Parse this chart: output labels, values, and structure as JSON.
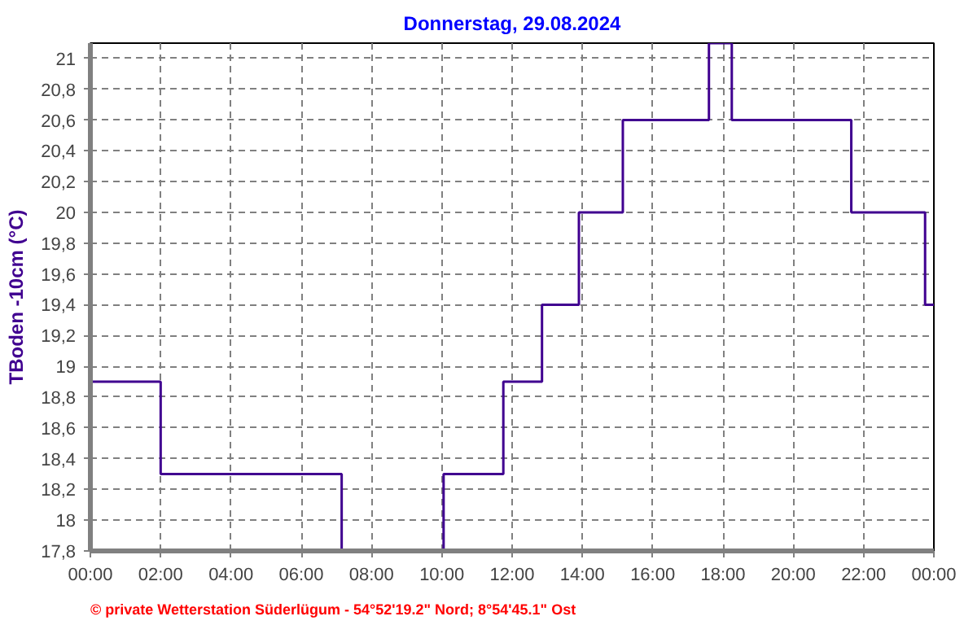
{
  "chart_data": {
    "type": "step",
    "title": "Donnerstag, 29.08.2024",
    "ylabel": "TBoden -10cm (°C)",
    "x": [
      0,
      2,
      7.15,
      10.05,
      11.75,
      12.85,
      13.9,
      15.15,
      17.6,
      18.25,
      21.65,
      23.75,
      24
    ],
    "series": [
      {
        "color": "#400090",
        "values": [
          18.9,
          18.3,
          17.8,
          18.3,
          18.9,
          19.4,
          20.0,
          20.6,
          21.1,
          20.6,
          20.0,
          19.4,
          19.4
        ]
      }
    ],
    "xlim": [
      0,
      24
    ],
    "ylim": [
      17.8,
      21.1
    ],
    "xticks": [
      {
        "value": 0,
        "label": "00:00"
      },
      {
        "value": 2,
        "label": "02:00"
      },
      {
        "value": 4,
        "label": "04:00"
      },
      {
        "value": 6,
        "label": "06:00"
      },
      {
        "value": 8,
        "label": "08:00"
      },
      {
        "value": 10,
        "label": "10:00"
      },
      {
        "value": 12,
        "label": "12:00"
      },
      {
        "value": 14,
        "label": "14:00"
      },
      {
        "value": 16,
        "label": "16:00"
      },
      {
        "value": 18,
        "label": "18:00"
      },
      {
        "value": 20,
        "label": "20:00"
      },
      {
        "value": 22,
        "label": "22:00"
      },
      {
        "value": 24,
        "label": "00:00"
      }
    ],
    "yticks": [
      {
        "value": 17.8,
        "label": "17,8"
      },
      {
        "value": 18,
        "label": "18"
      },
      {
        "value": 18.2,
        "label": "18,2"
      },
      {
        "value": 18.4,
        "label": "18,4"
      },
      {
        "value": 18.6,
        "label": "18,6"
      },
      {
        "value": 18.8,
        "label": "18,8"
      },
      {
        "value": 19,
        "label": "19"
      },
      {
        "value": 19.2,
        "label": "19,2"
      },
      {
        "value": 19.4,
        "label": "19,4"
      },
      {
        "value": 19.6,
        "label": "19,6"
      },
      {
        "value": 19.8,
        "label": "19,8"
      },
      {
        "value": 20,
        "label": "20"
      },
      {
        "value": 20.2,
        "label": "20,2"
      },
      {
        "value": 20.4,
        "label": "20,4"
      },
      {
        "value": 20.6,
        "label": "20,6"
      },
      {
        "value": 20.8,
        "label": "20,8"
      },
      {
        "value": 21,
        "label": "21"
      }
    ],
    "grid": true,
    "line_style": "solid",
    "annotations": [
      "© private Wetterstation Süderlügum  -  54°52'19.2\" Nord; 8°54'45.1\" Ost"
    ]
  }
}
